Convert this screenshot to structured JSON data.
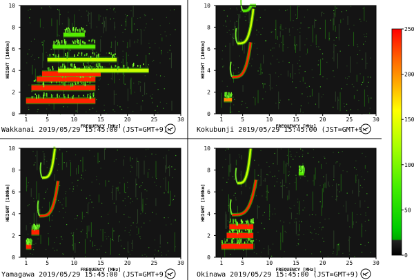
{
  "colorbar": {
    "max_label": "250",
    "labels": [
      "250",
      "200",
      "150",
      "100",
      "50",
      "0"
    ],
    "values": [
      250,
      200,
      150,
      100,
      50,
      0
    ],
    "colors": [
      "#ff0000",
      "#ff8800",
      "#ffff00",
      "#88ff00",
      "#00cc00",
      "#000000"
    ]
  },
  "chart_data": [
    {
      "type": "scatter",
      "station": "Wakkanai",
      "caption": "Wakkanai 2019/05/29 15:45:00 (JST=GMT+9)",
      "xlabel": "FREQUENCY [MHz]",
      "ylabel": "HEIGHT [100km]",
      "xlim": [
        0,
        30
      ],
      "ylim": [
        0,
        10
      ],
      "xticks": [
        "1",
        "5",
        "10",
        "15",
        "20",
        "25",
        "30"
      ],
      "xtick_values": [
        1,
        5,
        10,
        15,
        20,
        25,
        30
      ],
      "yticks": [
        "0",
        "2",
        "4",
        "6",
        "8",
        "10"
      ],
      "ytick_values": [
        0,
        2,
        4,
        6,
        8,
        10
      ],
      "traces": [
        {
          "name": "layer-1",
          "freq_range": [
            1,
            14
          ],
          "height": 1.2,
          "intensity": 250
        },
        {
          "name": "layer-2",
          "freq_range": [
            2,
            14
          ],
          "height": 2.4,
          "intensity": 240
        },
        {
          "name": "layer-3",
          "freq_range": [
            3,
            14
          ],
          "height": 3.2,
          "intensity": 220
        },
        {
          "name": "layer-4",
          "freq_range": [
            4,
            15
          ],
          "height": 3.7,
          "intensity": 210
        },
        {
          "name": "layer-5",
          "freq_range": [
            7,
            24
          ],
          "height": 4.0,
          "intensity": 150
        },
        {
          "name": "layer-6",
          "freq_range": [
            5,
            18
          ],
          "height": 5.0,
          "intensity": 140
        },
        {
          "name": "layer-7",
          "freq_range": [
            6,
            14
          ],
          "height": 6.2,
          "intensity": 110
        },
        {
          "name": "layer-8",
          "freq_range": [
            8,
            12
          ],
          "height": 7.3,
          "intensity": 90
        }
      ]
    },
    {
      "type": "scatter",
      "station": "Kokubunji",
      "caption": "Kokubunji 2019/05/29 15:45:00 (JST=GMT+9)",
      "xlabel": "FREQUENCY [MHz]",
      "ylabel": "HEIGHT [100km]",
      "xlim": [
        0,
        30
      ],
      "ylim": [
        0,
        10
      ],
      "xticks": [
        "1",
        "5",
        "10",
        "15",
        "20",
        "25",
        "30"
      ],
      "xtick_values": [
        1,
        5,
        10,
        15,
        20,
        25,
        30
      ],
      "yticks": [
        "0",
        "2",
        "4",
        "6",
        "8",
        "10"
      ],
      "ytick_values": [
        0,
        2,
        4,
        6,
        8,
        10
      ],
      "traces": [
        {
          "name": "layer-1",
          "freq_range": [
            1.5,
            3.0
          ],
          "height": 1.3,
          "intensity": 180
        },
        {
          "name": "cusp-1",
          "freq_range": [
            3.0,
            6.5
          ],
          "height": 3.4,
          "intensity": 240
        },
        {
          "name": "cusp-2",
          "freq_range": [
            4.0,
            7.0
          ],
          "height": 6.5,
          "intensity": 130
        },
        {
          "name": "cusp-3",
          "freq_range": [
            5.0,
            7.5
          ],
          "height": 9.5,
          "intensity": 100
        }
      ]
    },
    {
      "type": "scatter",
      "station": "Yamagawa",
      "caption": "Yamagawa 2019/05/29 15:45:00 (JST=GMT+9)",
      "xlabel": "FREQUENCY [MHz]",
      "ylabel": "HEIGHT [100km]",
      "xlim": [
        0,
        30
      ],
      "ylim": [
        0,
        10
      ],
      "xticks": [
        "1",
        "5",
        "10",
        "15",
        "20",
        "25",
        "30"
      ],
      "xtick_values": [
        1,
        5,
        10,
        15,
        20,
        25,
        30
      ],
      "yticks": [
        "0",
        "2",
        "4",
        "6",
        "8",
        "10"
      ],
      "ytick_values": [
        0,
        2,
        4,
        6,
        8,
        10
      ],
      "traces": [
        {
          "name": "layer-1",
          "freq_range": [
            1.0,
            2.0
          ],
          "height": 1.0,
          "intensity": 230
        },
        {
          "name": "layer-2",
          "freq_range": [
            2.0,
            3.5
          ],
          "height": 2.3,
          "intensity": 220
        },
        {
          "name": "cusp-1",
          "freq_range": [
            3.5,
            7.0
          ],
          "height": 3.8,
          "intensity": 245
        },
        {
          "name": "cusp-2",
          "freq_range": [
            4.0,
            6.5
          ],
          "height": 7.3,
          "intensity": 130
        }
      ]
    },
    {
      "type": "scatter",
      "station": "Okinawa",
      "caption": "Okinawa 2019/05/29 15:45:00 (JST=GMT+9)",
      "xlabel": "FREQUENCY [MHz]",
      "ylabel": "HEIGHT [100km]",
      "xlim": [
        0,
        30
      ],
      "ylim": [
        0,
        10
      ],
      "xticks": [
        "1",
        "5",
        "10",
        "15",
        "20",
        "25",
        "30"
      ],
      "xtick_values": [
        1,
        5,
        10,
        15,
        20,
        25,
        30
      ],
      "yticks": [
        "0",
        "2",
        "4",
        "6",
        "8",
        "10"
      ],
      "ytick_values": [
        0,
        2,
        4,
        6,
        8,
        10
      ],
      "traces": [
        {
          "name": "layer-1",
          "freq_range": [
            1.0,
            7.0
          ],
          "height": 1.0,
          "intensity": 250
        },
        {
          "name": "layer-2",
          "freq_range": [
            2.0,
            7.0
          ],
          "height": 2.0,
          "intensity": 230
        },
        {
          "name": "layer-3",
          "freq_range": [
            2.5,
            7.0
          ],
          "height": 2.8,
          "intensity": 210
        },
        {
          "name": "cusp-1",
          "freq_range": [
            3.0,
            7.5
          ],
          "height": 3.9,
          "intensity": 220
        },
        {
          "name": "cusp-2",
          "freq_range": [
            4.0,
            6.5
          ],
          "height": 6.8,
          "intensity": 120
        },
        {
          "name": "speck",
          "freq_range": [
            15.5,
            16.5
          ],
          "height": 7.7,
          "intensity": 90
        }
      ]
    }
  ]
}
